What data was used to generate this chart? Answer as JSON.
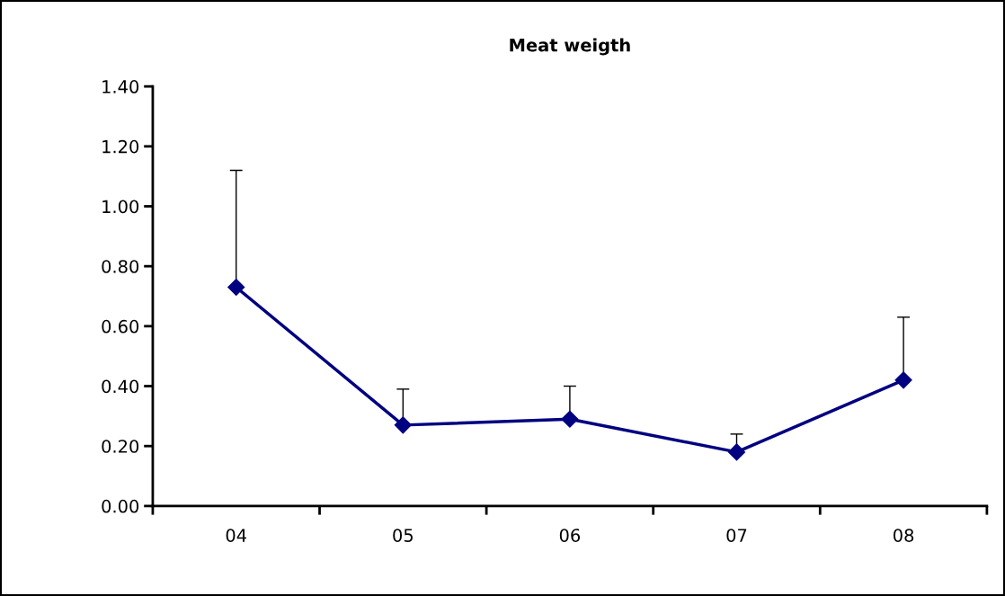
{
  "chart_data": {
    "type": "line",
    "title": "Meat weigth",
    "categories": [
      "04",
      "05",
      "06",
      "07",
      "08"
    ],
    "series": [
      {
        "color": "#000080",
        "values": [
          0.73,
          0.27,
          0.29,
          0.18,
          0.42
        ],
        "errors": [
          [
            0.73,
            1.12
          ],
          [
            0.27,
            0.39
          ],
          [
            0.29,
            0.4
          ],
          [
            0.18,
            0.24
          ],
          [
            0.42,
            0.63
          ]
        ]
      }
    ],
    "ylim": [
      0,
      1.4
    ],
    "yticks": [
      {
        "value": 0,
        "label": "0.00"
      },
      {
        "value": 0.2,
        "label": "0.20"
      },
      {
        "value": 0.4,
        "label": "0.40"
      },
      {
        "value": 0.6,
        "label": "0.60"
      },
      {
        "value": 0.8,
        "label": "0.80"
      },
      {
        "value": 1.0,
        "label": "1.00"
      },
      {
        "value": 1.2,
        "label": "1.20"
      },
      {
        "value": 1.4,
        "label": "1.40"
      }
    ],
    "grid": false,
    "marker": "diamond",
    "line_style": "solid"
  }
}
